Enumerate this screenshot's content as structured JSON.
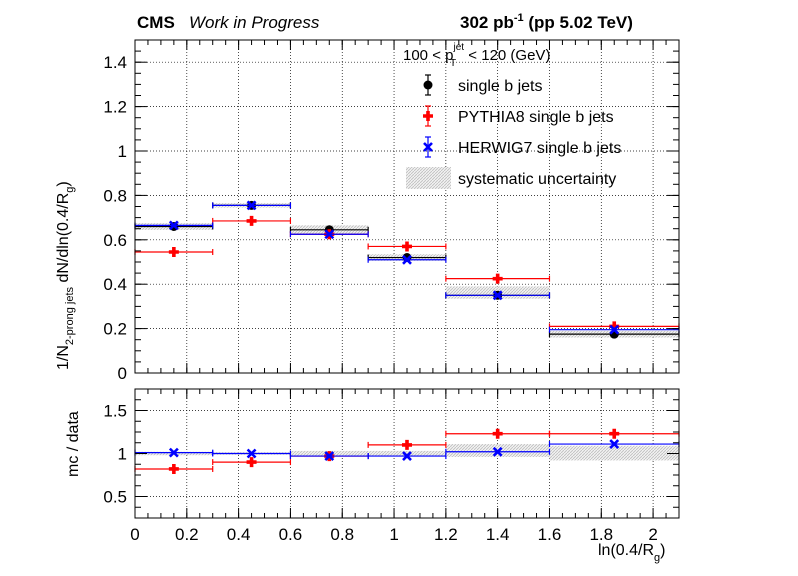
{
  "header": {
    "cms": "CMS",
    "work": "Work in Progress",
    "lumi": "302 pb",
    "lumi_sup": "-1",
    "lumi_rest": " (pp 5.02 TeV)"
  },
  "kin_label": {
    "left": "100 < p",
    "sup": "jet",
    "sub": "T",
    "right": " < 120 (GeV)"
  },
  "colors": {
    "data": "#000000",
    "pythia": "#ff0000",
    "herwig": "#0000ff",
    "syst": "#d9d9d9"
  },
  "chart_data": [
    {
      "type": "scatter",
      "ylabel_parts": {
        "pre": "1/N",
        "sub": "2-prong jets",
        "post": " dN/dln(0.4/R",
        "sub2": "g",
        "end": ")"
      },
      "ylim": [
        0,
        1.5
      ],
      "yticks": [
        "0",
        "0.2",
        "0.4",
        "0.6",
        "0.8",
        "1",
        "1.2",
        "1.4"
      ],
      "ytick_values": [
        0,
        0.2,
        0.4,
        0.6,
        0.8,
        1.0,
        1.2,
        1.4
      ],
      "xlim": [
        0,
        2.1
      ],
      "grid": true,
      "legend_position": "top-right",
      "bins": [
        [
          0,
          0.3
        ],
        [
          0.3,
          0.6
        ],
        [
          0.6,
          0.9
        ],
        [
          0.9,
          1.2
        ],
        [
          1.2,
          1.6
        ],
        [
          1.6,
          2.1
        ]
      ],
      "series": [
        {
          "name": "single b jets",
          "x": [
            0.15,
            0.45,
            0.75,
            1.05,
            1.4,
            1.85
          ],
          "values": [
            0.66,
            0.755,
            0.645,
            0.52,
            0.35,
            0.175
          ]
        },
        {
          "name": "PYTHIA8 single b jets",
          "x": [
            0.15,
            0.45,
            0.75,
            1.05,
            1.4,
            1.85
          ],
          "values": [
            0.545,
            0.685,
            0.625,
            0.57,
            0.425,
            0.21
          ]
        },
        {
          "name": "HERWIG7 single b jets",
          "x": [
            0.15,
            0.45,
            0.75,
            1.05,
            1.4,
            1.85
          ],
          "values": [
            0.665,
            0.755,
            0.625,
            0.51,
            0.35,
            0.195
          ]
        }
      ],
      "systematic": {
        "name": "systematic uncertainty",
        "low": [
          0.645,
          0.745,
          0.625,
          0.505,
          0.335,
          0.16
        ],
        "high": [
          0.675,
          0.765,
          0.665,
          0.535,
          0.39,
          0.19
        ]
      }
    },
    {
      "type": "scatter",
      "ylabel": "mc / data",
      "xlabel_parts": {
        "pre": "ln(0.4/R",
        "sub": "g",
        "end": ")"
      },
      "ylim": [
        0.25,
        1.75
      ],
      "yticks": [
        "0.5",
        "1",
        "1.5"
      ],
      "ytick_values": [
        0.5,
        1.0,
        1.5
      ],
      "xlim": [
        0,
        2.1
      ],
      "xticks": [
        "0",
        "0.2",
        "0.4",
        "0.6",
        "0.8",
        "1",
        "1.2",
        "1.4",
        "1.6",
        "1.8",
        "2"
      ],
      "xtick_values": [
        0,
        0.2,
        0.4,
        0.6,
        0.8,
        1.0,
        1.2,
        1.4,
        1.6,
        1.8,
        2.0
      ],
      "grid": true,
      "series": [
        {
          "name": "PYTHIA8 single b jets",
          "x": [
            0.15,
            0.45,
            0.75,
            1.05,
            1.4,
            1.85
          ],
          "values": [
            0.82,
            0.9,
            0.97,
            1.1,
            1.23,
            1.23
          ]
        },
        {
          "name": "HERWIG7 single b jets",
          "x": [
            0.15,
            0.45,
            0.75,
            1.05,
            1.4,
            1.85
          ],
          "values": [
            1.01,
            1.0,
            0.97,
            0.97,
            1.02,
            1.11
          ]
        }
      ],
      "systematic": {
        "low": [
          0.98,
          0.985,
          0.965,
          0.97,
          0.96,
          0.92
        ],
        "high": [
          1.02,
          1.015,
          1.03,
          1.03,
          1.11,
          1.09
        ]
      }
    }
  ]
}
